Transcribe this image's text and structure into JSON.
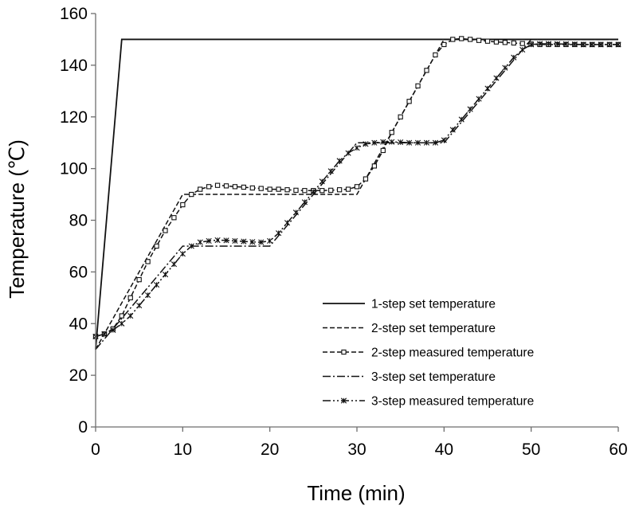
{
  "chart_data": {
    "type": "line",
    "title": "",
    "xlabel": "Time (min)",
    "ylabel": "Temperature (℃)",
    "xlim": [
      0,
      60
    ],
    "ylim": [
      0,
      160
    ],
    "xticks": [
      "0",
      "10",
      "20",
      "30",
      "40",
      "50",
      "60"
    ],
    "yticks": [
      "0",
      "20",
      "40",
      "60",
      "80",
      "100",
      "120",
      "140",
      "160"
    ],
    "grid": false,
    "legend": "lower-right inside plot",
    "series": [
      {
        "name": "1-step set temperature",
        "style": "solid",
        "marker": "none",
        "x": [
          0,
          3,
          60
        ],
        "y": [
          30,
          150,
          150
        ]
      },
      {
        "name": "2-step set temperature",
        "style": "dashed",
        "marker": "none",
        "x": [
          0,
          10,
          30,
          40,
          60
        ],
        "y": [
          30,
          90,
          90,
          150,
          150
        ]
      },
      {
        "name": "2-step measured temperature",
        "style": "dashed",
        "marker": "square",
        "x": [
          0,
          1,
          2,
          3,
          4,
          5,
          6,
          7,
          8,
          9,
          10,
          11,
          12,
          13,
          14,
          15,
          16,
          17,
          18,
          19,
          20,
          21,
          22,
          23,
          24,
          25,
          26,
          27,
          28,
          29,
          30,
          31,
          32,
          33,
          34,
          35,
          36,
          37,
          38,
          39,
          40,
          41,
          42,
          43,
          44,
          45,
          46,
          47,
          48,
          49,
          50,
          51,
          52,
          53,
          54,
          55,
          56,
          57,
          58,
          59,
          60
        ],
        "y": [
          35,
          36,
          38,
          43,
          50,
          57,
          64,
          70,
          76,
          81,
          86,
          90,
          92,
          93,
          93.5,
          93.3,
          93,
          92.8,
          92.5,
          92.3,
          92,
          92,
          91.8,
          91.6,
          91.5,
          91.5,
          91.5,
          91.6,
          91.8,
          92,
          93,
          96,
          101,
          107,
          114,
          120,
          126,
          132,
          138,
          144,
          148,
          150,
          150.3,
          150,
          149.6,
          149.3,
          149,
          148.8,
          148.6,
          148.4,
          148.2,
          148,
          148,
          148,
          148,
          148,
          148,
          148,
          148,
          148,
          148
        ]
      },
      {
        "name": "3-step set temperature",
        "style": "dash-dot",
        "marker": "none",
        "x": [
          0,
          10,
          20,
          30,
          40,
          50,
          60
        ],
        "y": [
          30,
          70,
          70,
          110,
          110,
          150,
          150
        ]
      },
      {
        "name": "3-step measured temperature",
        "style": "dash-dot-dot",
        "marker": "asterisk",
        "x": [
          0,
          1,
          2,
          3,
          4,
          5,
          6,
          7,
          8,
          9,
          10,
          11,
          12,
          13,
          14,
          15,
          16,
          17,
          18,
          19,
          20,
          21,
          22,
          23,
          24,
          25,
          26,
          27,
          28,
          29,
          30,
          31,
          32,
          33,
          34,
          35,
          36,
          37,
          38,
          39,
          40,
          41,
          42,
          43,
          44,
          45,
          46,
          47,
          48,
          49,
          50,
          51,
          52,
          53,
          54,
          55,
          56,
          57,
          58,
          59,
          60
        ],
        "y": [
          35,
          36,
          37.5,
          40,
          43,
          47,
          51,
          55,
          59,
          63,
          67,
          70,
          71.5,
          72,
          72.3,
          72.2,
          72,
          71.8,
          71.6,
          71.5,
          72,
          75,
          79,
          83,
          87,
          91,
          95,
          99,
          103,
          106,
          108,
          109.5,
          110,
          110.3,
          110.3,
          110.2,
          110,
          110,
          110,
          110,
          111,
          115,
          119,
          123,
          127,
          131,
          135,
          139,
          143,
          146,
          148,
          148.3,
          148.3,
          148.2,
          148.2,
          148.1,
          148,
          148,
          148,
          148,
          148
        ]
      }
    ]
  }
}
